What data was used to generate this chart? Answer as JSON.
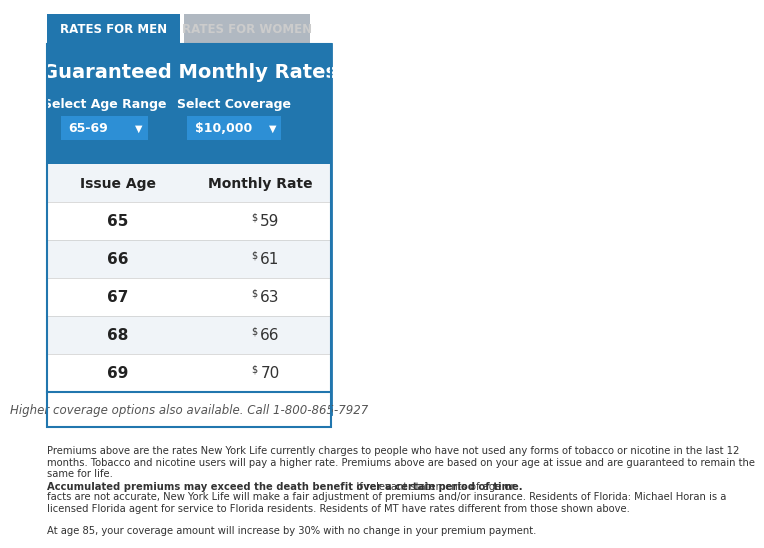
{
  "tab_men_text": "RATES FOR MEN",
  "tab_women_text": "RATES FOR WOMEN",
  "tab_men_color": "#2176ae",
  "tab_women_color": "#b0b8c1",
  "tab_men_text_color": "#ffffff",
  "tab_women_text_color": "#cccccc",
  "header_bg": "#2176ae",
  "header_title": "Guaranteed Monthly Rates",
  "header_title_color": "#ffffff",
  "label_age_range": "Select Age Range",
  "label_coverage": "Select Coverage",
  "dropdown_age": "65-69",
  "dropdown_coverage": "$10,000",
  "dropdown_bg": "#2d8fd5",
  "dropdown_text_color": "#ffffff",
  "table_header_col1": "Issue Age",
  "table_header_col2": "Monthly Rate",
  "table_header_bg": "#f0f4f8",
  "table_border_color": "#2176ae",
  "row_bg_odd": "#ffffff",
  "row_bg_even": "#f0f4f8",
  "ages": [
    65,
    66,
    67,
    68,
    69
  ],
  "rates": [
    "59",
    "61",
    "63",
    "66",
    "70"
  ],
  "footer_text": "Higher coverage options also available. Call 1-800-865-7927",
  "footer_bg": "#ffffff",
  "footer_color": "#555555",
  "disclaimer1": "Premiums above are the rates New York Life currently charges to people who have not used any forms of tobacco or nicotine in the last 12\nmonths. Tobacco and nicotine users will pay a higher rate. Premiums above are based on your age at issue and are guaranteed to remain the\nsame for life. Accumulated premiums may exceed the death benefit over a certain period of time. If relevant statements of age or\nfacts are not accurate, New York Life will make a fair adjustment of premiums and/or insurance. Residents of Florida: Michael Horan is a\nlicensed Florida agent for service to Florida residents. Residents of MT have rates different from those shown above.",
  "disclaimer1_bold": "Accumulated premiums may exceed the death benefit over a certain period of time.",
  "disclaimer2": "At age 85, your coverage amount will increase by 30% with no change in your premium payment.",
  "disclaimer_color": "#333333",
  "bg_color": "#ffffff"
}
